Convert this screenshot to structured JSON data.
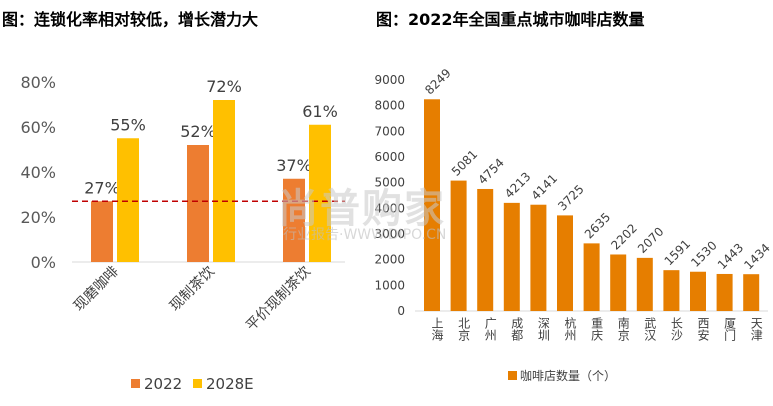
{
  "left_title": "图：连锁化率相对较低，增长潜力大",
  "right_title": "图：2022年全国重点城市咖啡店数量",
  "watermark": "尚普购家",
  "watermark_sub": "行业报告·WWW.DIPO.CN",
  "colors": {
    "orange": "#ED7D31",
    "yellow": "#FFC000",
    "dark_orange": "#E67E00",
    "dashed_line": "#C00000"
  },
  "chart_data": [
    {
      "type": "bar",
      "title": "图：连锁化率相对较低，增长潜力大",
      "categories": [
        "现磨咖啡",
        "现制茶饮",
        "平价现制茶饮"
      ],
      "series": [
        {
          "name": "2022",
          "values": [
            27,
            52,
            37
          ],
          "labels": [
            "27%",
            "52%",
            "37%"
          ]
        },
        {
          "name": "2028E",
          "values": [
            55,
            72,
            61
          ],
          "labels": [
            "55%",
            "72%",
            "61%"
          ]
        }
      ],
      "yticks": [
        "0%",
        "20%",
        "40%",
        "60%",
        "80%"
      ],
      "ylim": [
        0,
        80
      ],
      "reference_line": 27,
      "legend": "bottom"
    },
    {
      "type": "bar",
      "title": "图：2022年全国重点城市咖啡店数量",
      "categories": [
        "上海",
        "北京",
        "广州",
        "成都",
        "深圳",
        "杭州",
        "重庆",
        "南京",
        "武汉",
        "长沙",
        "西安",
        "厦门",
        "天津"
      ],
      "series": [
        {
          "name": "咖啡店数量（个）",
          "values": [
            8249,
            5081,
            4754,
            4213,
            4141,
            3725,
            2635,
            2202,
            2070,
            1591,
            1530,
            1443,
            1434
          ]
        }
      ],
      "yticks": [
        "0",
        "1000",
        "2000",
        "3000",
        "4000",
        "5000",
        "6000",
        "7000",
        "8000",
        "9000"
      ],
      "ylim": [
        0,
        9000
      ],
      "legend": "bottom"
    }
  ]
}
